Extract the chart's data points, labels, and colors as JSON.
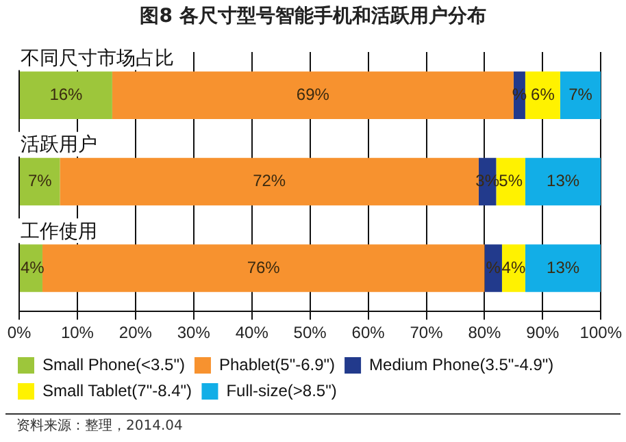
{
  "chart_data": {
    "type": "bar",
    "orientation": "horizontal",
    "stacked": true,
    "title": "图8   各尺寸型号智能手机和活跃用户分布",
    "categories": [
      "不同尺寸市场占比",
      "活跃用户",
      "工作使用"
    ],
    "series": [
      {
        "name": "Small Phone(<3.5\")",
        "color": "#9dc63b",
        "values": [
          16,
          7,
          4
        ],
        "value_labels": [
          "16%",
          "7%",
          "4%"
        ]
      },
      {
        "name": "Phablet(5\"-6.9\")",
        "color": "#f7922f",
        "values": [
          69,
          72,
          76
        ],
        "value_labels": [
          "69%",
          "72%",
          "76%"
        ]
      },
      {
        "name": "Medium Phone(3.5\"-4.9\")",
        "color": "#223a8c",
        "values": [
          2,
          3,
          3
        ],
        "value_labels": [
          "%",
          "3%",
          "%"
        ]
      },
      {
        "name": "Small Tablet(7\"-8.4\")",
        "color": "#fff200",
        "values": [
          6,
          5,
          4
        ],
        "value_labels": [
          "6%",
          "5%",
          "4%"
        ]
      },
      {
        "name": "Full-size(>8.5\")",
        "color": "#12aee7",
        "values": [
          7,
          13,
          13
        ],
        "value_labels": [
          "7%",
          "13%",
          "13%"
        ]
      }
    ],
    "xlim": [
      0,
      100
    ],
    "xticks": [
      {
        "value": 0,
        "label": "0%"
      },
      {
        "value": 10,
        "label": "10%"
      },
      {
        "value": 20,
        "label": "20%"
      },
      {
        "value": 30,
        "label": "30%"
      },
      {
        "value": 40,
        "label": "40%"
      },
      {
        "value": 50,
        "label": "50%"
      },
      {
        "value": 60,
        "label": "60%"
      },
      {
        "value": 70,
        "label": "70%"
      },
      {
        "value": 80,
        "label": "80%"
      },
      {
        "value": 90,
        "label": "90%"
      },
      {
        "value": 100,
        "label": "100%"
      }
    ],
    "grid": "x",
    "legend": "bottom",
    "annotations": [
      "资料来源：整理，2014.04"
    ]
  }
}
